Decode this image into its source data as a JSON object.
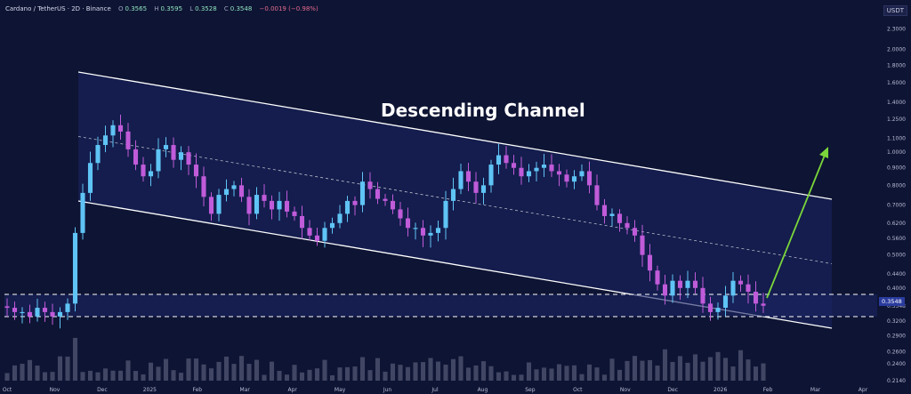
{
  "header": {
    "symbol": "Cardano / TetherUS · 2D · Binance",
    "open_label": "O",
    "open": "0.3565",
    "high_label": "H",
    "high": "0.3595",
    "low_label": "L",
    "low": "0.3528",
    "close_label": "C",
    "close": "0.3548",
    "change": "−0.0019 (−0.98%)"
  },
  "price_scale_unit": "USDT",
  "current_price_label": "0.3548",
  "colors": {
    "background": "#0e1433",
    "channel_fill": "#1a2563",
    "channel_line": "#ffffff",
    "candle_up": "#5fc4f5",
    "candle_down": "#c05bd9",
    "projection_arrow": "#7bd63b",
    "support_line": "#ffffff",
    "volume": "#6a6f8a"
  },
  "chart_data": {
    "type": "line",
    "title": "Descending Channel",
    "xlabel": "",
    "ylabel": "",
    "yscale": "log",
    "ylim": [
      0.214,
      2.6
    ],
    "x_ticks": [
      "Oct",
      "Nov",
      "Dec",
      "2025",
      "Feb",
      "Mar",
      "Apr",
      "May",
      "Jun",
      "Jul",
      "Aug",
      "Sep",
      "Oct",
      "Nov",
      "Dec",
      "2026",
      "Feb",
      "Mar",
      "Apr"
    ],
    "y_ticks": [
      "2.3000",
      "2.0000",
      "1.8000",
      "1.6000",
      "1.4000",
      "1.2500",
      "1.1000",
      "1.0000",
      "0.9000",
      "0.8000",
      "0.7000",
      "0.6200",
      "0.5600",
      "0.5000",
      "0.4400",
      "0.4000",
      "0.3548",
      "0.3200",
      "0.2900",
      "0.2600",
      "0.2400",
      "0.2140"
    ],
    "series": [
      {
        "values": [
          0.35,
          0.34,
          0.34,
          0.33,
          0.35,
          0.34,
          0.33,
          0.34,
          0.36,
          0.58,
          0.76,
          0.93,
          1.05,
          1.12,
          1.2,
          1.15,
          1.02,
          0.92,
          0.85,
          0.88,
          1.02,
          1.05,
          0.95,
          1.0,
          0.92,
          0.85,
          0.74,
          0.66,
          0.75,
          0.78,
          0.8,
          0.74,
          0.66,
          0.75,
          0.72,
          0.68,
          0.72,
          0.67,
          0.65,
          0.6,
          0.57,
          0.55,
          0.6,
          0.62,
          0.66,
          0.72,
          0.7,
          0.82,
          0.78,
          0.73,
          0.72,
          0.68,
          0.64,
          0.6,
          0.6,
          0.57,
          0.58,
          0.6,
          0.72,
          0.78,
          0.88,
          0.82,
          0.76,
          0.8,
          0.92,
          0.98,
          0.93,
          0.9,
          0.85,
          0.88,
          0.9,
          0.92,
          0.88,
          0.86,
          0.82,
          0.85,
          0.88,
          0.8,
          0.7,
          0.65,
          0.66,
          0.62,
          0.6,
          0.57,
          0.5,
          0.45,
          0.41,
          0.38,
          0.42,
          0.4,
          0.42,
          0.4,
          0.36,
          0.34,
          0.35,
          0.38,
          0.42,
          0.41,
          0.39,
          0.36,
          0.3548
        ]
      }
    ]
  }
}
